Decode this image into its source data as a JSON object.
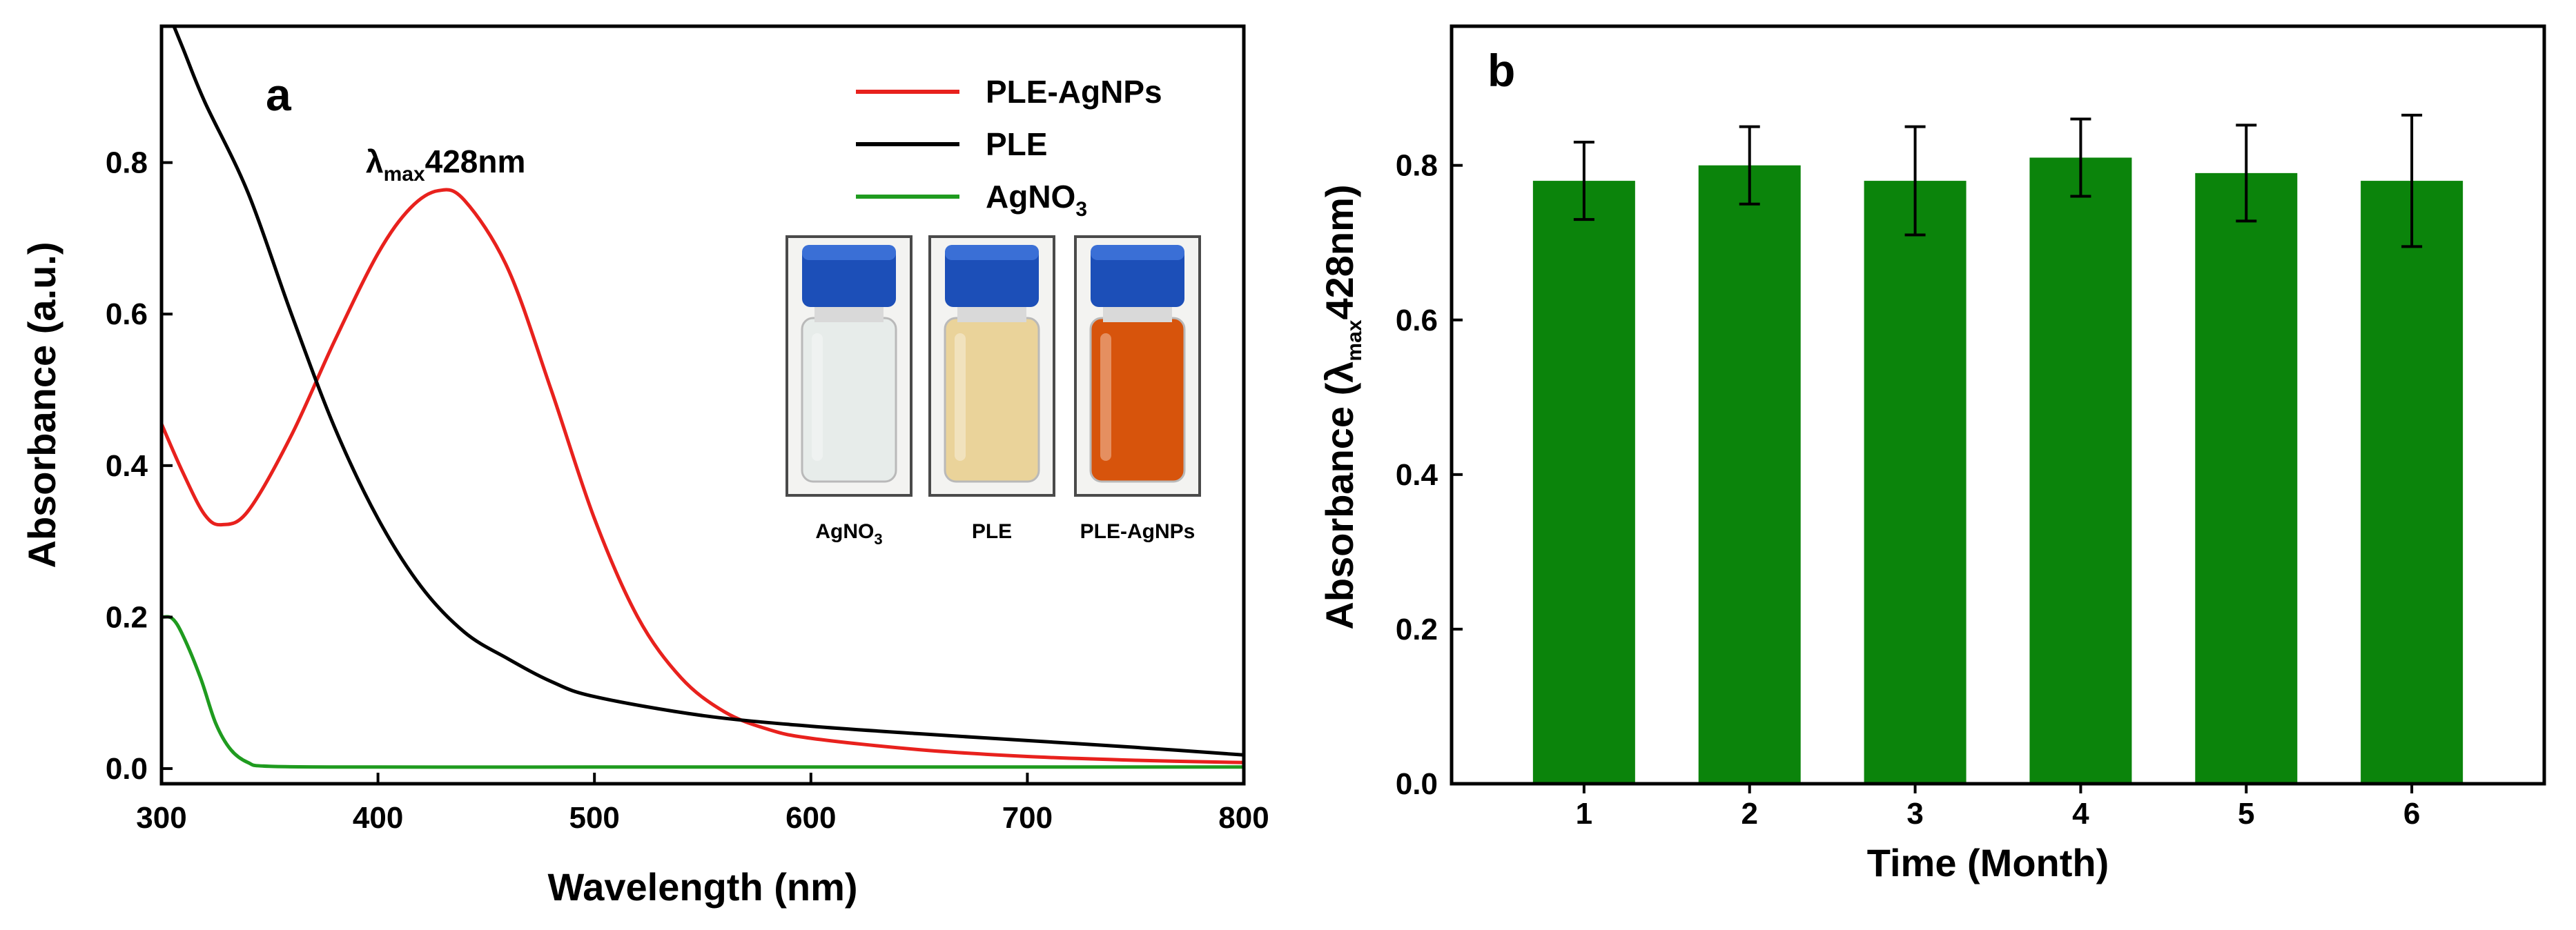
{
  "chart_data": [
    {
      "panel": "a",
      "type": "line",
      "xlabel": "Wavelength (nm)",
      "ylabel": "Absorbance (a.u.)",
      "xlim": [
        300,
        800
      ],
      "ylim": [
        -0.02,
        0.98
      ],
      "xticks": [
        300,
        400,
        500,
        600,
        700,
        800
      ],
      "yticks": [
        "0.0",
        "0.2",
        "0.4",
        "0.6",
        "0.8"
      ],
      "legend_position": "top-right",
      "annotation": {
        "lambda": "λ",
        "sub": "max",
        "text": "428nm",
        "x": 428,
        "y": 0.8
      },
      "series": [
        {
          "name": "PLE-AgNPs",
          "color": "#e8211d",
          "points": [
            [
              300,
              0.455
            ],
            [
              310,
              0.39
            ],
            [
              320,
              0.335
            ],
            [
              328,
              0.322
            ],
            [
              340,
              0.34
            ],
            [
              360,
              0.44
            ],
            [
              380,
              0.565
            ],
            [
              400,
              0.68
            ],
            [
              415,
              0.74
            ],
            [
              428,
              0.763
            ],
            [
              440,
              0.75
            ],
            [
              460,
              0.66
            ],
            [
              480,
              0.5
            ],
            [
              500,
              0.33
            ],
            [
              520,
              0.2
            ],
            [
              540,
              0.12
            ],
            [
              560,
              0.075
            ],
            [
              580,
              0.052
            ],
            [
              600,
              0.04
            ],
            [
              650,
              0.025
            ],
            [
              700,
              0.016
            ],
            [
              750,
              0.011
            ],
            [
              800,
              0.008
            ]
          ]
        },
        {
          "name": "PLE",
          "color": "#000000",
          "points": [
            [
              300,
              1.02
            ],
            [
              310,
              0.95
            ],
            [
              320,
              0.88
            ],
            [
              340,
              0.76
            ],
            [
              360,
              0.6
            ],
            [
              380,
              0.45
            ],
            [
              400,
              0.33
            ],
            [
              420,
              0.24
            ],
            [
              440,
              0.18
            ],
            [
              460,
              0.145
            ],
            [
              480,
              0.115
            ],
            [
              500,
              0.095
            ],
            [
              550,
              0.07
            ],
            [
              600,
              0.056
            ],
            [
              650,
              0.046
            ],
            [
              700,
              0.037
            ],
            [
              750,
              0.028
            ],
            [
              800,
              0.018
            ]
          ]
        },
        {
          "name": "AgNO",
          "name_sub": "3",
          "color": "#1f9b1f",
          "points": [
            [
              300,
              0.2
            ],
            [
              305,
              0.198
            ],
            [
              310,
              0.175
            ],
            [
              318,
              0.12
            ],
            [
              325,
              0.06
            ],
            [
              332,
              0.025
            ],
            [
              340,
              0.008
            ],
            [
              350,
              0.003
            ],
            [
              400,
              0.002
            ],
            [
              500,
              0.002
            ],
            [
              600,
              0.002
            ],
            [
              700,
              0.002
            ],
            [
              800,
              0.002
            ]
          ]
        }
      ],
      "inset": {
        "vials": [
          {
            "label": "AgNO",
            "label_sub": "3",
            "liquid_color": "#e7ecea"
          },
          {
            "label": "PLE",
            "label_sub": "",
            "liquid_color": "#ead39a"
          },
          {
            "label": "PLE-AgNPs",
            "label_sub": "",
            "liquid_color": "#d7540c"
          }
        ],
        "cap_color": "#1c4fb8",
        "frame_color": "#4a4a4a"
      }
    },
    {
      "panel": "b",
      "type": "bar",
      "xlabel": "Time (Month)",
      "ylabel": "Absorbance (",
      "ylabel_lambda": "λ",
      "ylabel_sub": "max",
      "ylabel_tail": "428nm)",
      "categories": [
        "1",
        "2",
        "3",
        "4",
        "5",
        "6"
      ],
      "values": [
        0.78,
        0.8,
        0.78,
        0.81,
        0.79,
        0.78
      ],
      "errors": [
        0.05,
        0.05,
        0.07,
        0.05,
        0.062,
        0.085
      ],
      "ylim": [
        0,
        0.98
      ],
      "yticks": [
        "0.0",
        "0.2",
        "0.4",
        "0.6",
        "0.8"
      ],
      "bar_color": "#0b840b"
    }
  ]
}
